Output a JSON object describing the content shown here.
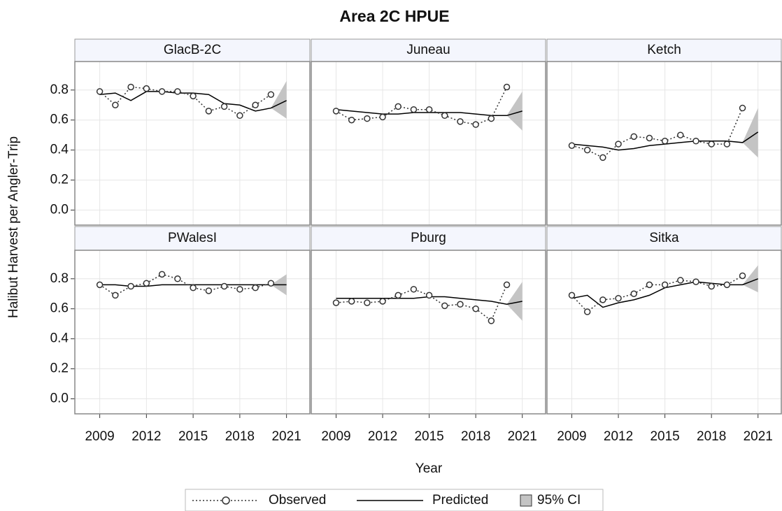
{
  "title": "Area 2C HPUE",
  "y_label": "Halibut Harvest per Angler-Trip",
  "x_label": "Year",
  "legend": {
    "position": "bottom",
    "entries": [
      {
        "name": "Observed",
        "color": "#333333"
      },
      {
        "name": "Predicted",
        "color": "#000000"
      },
      {
        "name": "95% CI",
        "color": "#c4c4c4"
      }
    ]
  },
  "chart_data": [
    {
      "type": "line",
      "title": "GlacB-2C",
      "x": [
        2009,
        2010,
        2011,
        2012,
        2013,
        2014,
        2015,
        2016,
        2017,
        2018,
        2019,
        2020,
        2021
      ],
      "series": [
        {
          "values": [
            0.79,
            0.7,
            0.82,
            0.81,
            0.79,
            0.79,
            0.76,
            0.66,
            0.69,
            0.63,
            0.7,
            0.77,
            null
          ]
        },
        {
          "values": [
            0.77,
            0.78,
            0.73,
            0.79,
            0.79,
            0.78,
            0.78,
            0.77,
            0.71,
            0.7,
            0.66,
            0.68,
            0.73
          ]
        },
        {
          "lower": [
            null,
            null,
            null,
            null,
            null,
            null,
            null,
            null,
            null,
            null,
            null,
            0.68,
            0.61
          ],
          "upper": [
            null,
            null,
            null,
            null,
            null,
            null,
            null,
            null,
            null,
            null,
            null,
            0.68,
            0.86
          ]
        }
      ],
      "xlim": [
        2007.4,
        2022.5
      ],
      "xticks": [
        2009,
        2012,
        2015,
        2018,
        2021
      ],
      "ylim": [
        -0.1,
        0.99
      ],
      "yticks": [
        {
          "value": 0,
          "label": "0.0"
        },
        0.2,
        0.4,
        0.6,
        0.8
      ],
      "grid": true
    },
    {
      "type": "line",
      "title": "Juneau",
      "x": [
        2009,
        2010,
        2011,
        2012,
        2013,
        2014,
        2015,
        2016,
        2017,
        2018,
        2019,
        2020,
        2021
      ],
      "series": [
        {
          "values": [
            0.66,
            0.6,
            0.61,
            0.62,
            0.69,
            0.67,
            0.67,
            0.63,
            0.59,
            0.57,
            0.61,
            0.82,
            null
          ]
        },
        {
          "values": [
            0.67,
            0.66,
            0.65,
            0.64,
            0.64,
            0.65,
            0.65,
            0.65,
            0.65,
            0.64,
            0.63,
            0.63,
            0.66
          ]
        },
        {
          "lower": [
            null,
            null,
            null,
            null,
            null,
            null,
            null,
            null,
            null,
            null,
            null,
            0.63,
            0.53
          ],
          "upper": [
            null,
            null,
            null,
            null,
            null,
            null,
            null,
            null,
            null,
            null,
            null,
            0.63,
            0.79
          ]
        }
      ],
      "xlim": [
        2007.4,
        2022.5
      ],
      "xticks": [
        2009,
        2012,
        2015,
        2018,
        2021
      ],
      "ylim": [
        -0.1,
        0.99
      ],
      "yticks": [
        {
          "value": 0,
          "label": "0.0"
        },
        0.2,
        0.4,
        0.6,
        0.8
      ],
      "grid": true
    },
    {
      "type": "line",
      "title": "Ketch",
      "x": [
        2009,
        2010,
        2011,
        2012,
        2013,
        2014,
        2015,
        2016,
        2017,
        2018,
        2019,
        2020,
        2021
      ],
      "series": [
        {
          "values": [
            0.43,
            0.4,
            0.35,
            0.44,
            0.49,
            0.48,
            0.46,
            0.5,
            0.46,
            0.44,
            0.44,
            0.68,
            null
          ]
        },
        {
          "values": [
            0.44,
            0.43,
            0.42,
            0.4,
            0.41,
            0.43,
            0.44,
            0.45,
            0.46,
            0.46,
            0.46,
            0.45,
            0.52
          ]
        },
        {
          "lower": [
            null,
            null,
            null,
            null,
            null,
            null,
            null,
            null,
            null,
            null,
            null,
            0.45,
            0.35
          ],
          "upper": [
            null,
            null,
            null,
            null,
            null,
            null,
            null,
            null,
            null,
            null,
            null,
            0.45,
            0.68
          ]
        }
      ],
      "xlim": [
        2007.4,
        2022.5
      ],
      "xticks": [
        2009,
        2012,
        2015,
        2018,
        2021
      ],
      "ylim": [
        -0.1,
        0.99
      ],
      "yticks": [
        {
          "value": 0,
          "label": "0.0"
        },
        0.2,
        0.4,
        0.6,
        0.8
      ],
      "grid": true
    },
    {
      "type": "line",
      "title": "PWalesI",
      "x": [
        2009,
        2010,
        2011,
        2012,
        2013,
        2014,
        2015,
        2016,
        2017,
        2018,
        2019,
        2020,
        2021
      ],
      "series": [
        {
          "values": [
            0.76,
            0.69,
            0.75,
            0.77,
            0.83,
            0.8,
            0.74,
            0.72,
            0.75,
            0.73,
            0.74,
            0.77,
            null
          ]
        },
        {
          "values": [
            0.76,
            0.76,
            0.75,
            0.75,
            0.76,
            0.76,
            0.76,
            0.76,
            0.76,
            0.76,
            0.76,
            0.76,
            0.76
          ]
        },
        {
          "lower": [
            null,
            null,
            null,
            null,
            null,
            null,
            null,
            null,
            null,
            null,
            null,
            0.76,
            0.69
          ],
          "upper": [
            null,
            null,
            null,
            null,
            null,
            null,
            null,
            null,
            null,
            null,
            null,
            0.76,
            0.83
          ]
        }
      ],
      "xlim": [
        2007.4,
        2022.5
      ],
      "xticks": [
        2009,
        2012,
        2015,
        2018,
        2021
      ],
      "ylim": [
        -0.1,
        0.99
      ],
      "yticks": [
        {
          "value": 0,
          "label": "0.0"
        },
        0.2,
        0.4,
        0.6,
        0.8
      ],
      "grid": true
    },
    {
      "type": "line",
      "title": "Pburg",
      "x": [
        2009,
        2010,
        2011,
        2012,
        2013,
        2014,
        2015,
        2016,
        2017,
        2018,
        2019,
        2020,
        2021
      ],
      "series": [
        {
          "values": [
            0.64,
            0.65,
            0.64,
            0.65,
            0.69,
            0.73,
            0.69,
            0.62,
            0.63,
            0.6,
            0.52,
            0.76,
            null
          ]
        },
        {
          "values": [
            0.67,
            0.67,
            0.67,
            0.67,
            0.67,
            0.67,
            0.68,
            0.68,
            0.67,
            0.66,
            0.65,
            0.63,
            0.65
          ]
        },
        {
          "lower": [
            null,
            null,
            null,
            null,
            null,
            null,
            null,
            null,
            null,
            null,
            null,
            0.63,
            0.52
          ],
          "upper": [
            null,
            null,
            null,
            null,
            null,
            null,
            null,
            null,
            null,
            null,
            null,
            0.63,
            0.78
          ]
        }
      ],
      "xlim": [
        2007.4,
        2022.5
      ],
      "xticks": [
        2009,
        2012,
        2015,
        2018,
        2021
      ],
      "ylim": [
        -0.1,
        0.99
      ],
      "yticks": [
        {
          "value": 0,
          "label": "0.0"
        },
        0.2,
        0.4,
        0.6,
        0.8
      ],
      "grid": true
    },
    {
      "type": "line",
      "title": "Sitka",
      "x": [
        2009,
        2010,
        2011,
        2012,
        2013,
        2014,
        2015,
        2016,
        2017,
        2018,
        2019,
        2020,
        2021
      ],
      "series": [
        {
          "values": [
            0.69,
            0.58,
            0.66,
            0.67,
            0.7,
            0.76,
            0.76,
            0.79,
            0.78,
            0.75,
            0.76,
            0.82,
            null
          ]
        },
        {
          "values": [
            0.67,
            0.69,
            0.61,
            0.64,
            0.66,
            0.69,
            0.74,
            0.76,
            0.78,
            0.77,
            0.76,
            0.76,
            0.8
          ]
        },
        {
          "lower": [
            null,
            null,
            null,
            null,
            null,
            null,
            null,
            null,
            null,
            null,
            null,
            0.76,
            0.71
          ],
          "upper": [
            null,
            null,
            null,
            null,
            null,
            null,
            null,
            null,
            null,
            null,
            null,
            0.76,
            0.89
          ]
        }
      ],
      "xlim": [
        2007.4,
        2022.5
      ],
      "xticks": [
        2009,
        2012,
        2015,
        2018,
        2021
      ],
      "ylim": [
        -0.1,
        0.99
      ],
      "yticks": [
        {
          "value": 0,
          "label": "0.0"
        },
        0.2,
        0.4,
        0.6,
        0.8
      ],
      "grid": true
    }
  ]
}
